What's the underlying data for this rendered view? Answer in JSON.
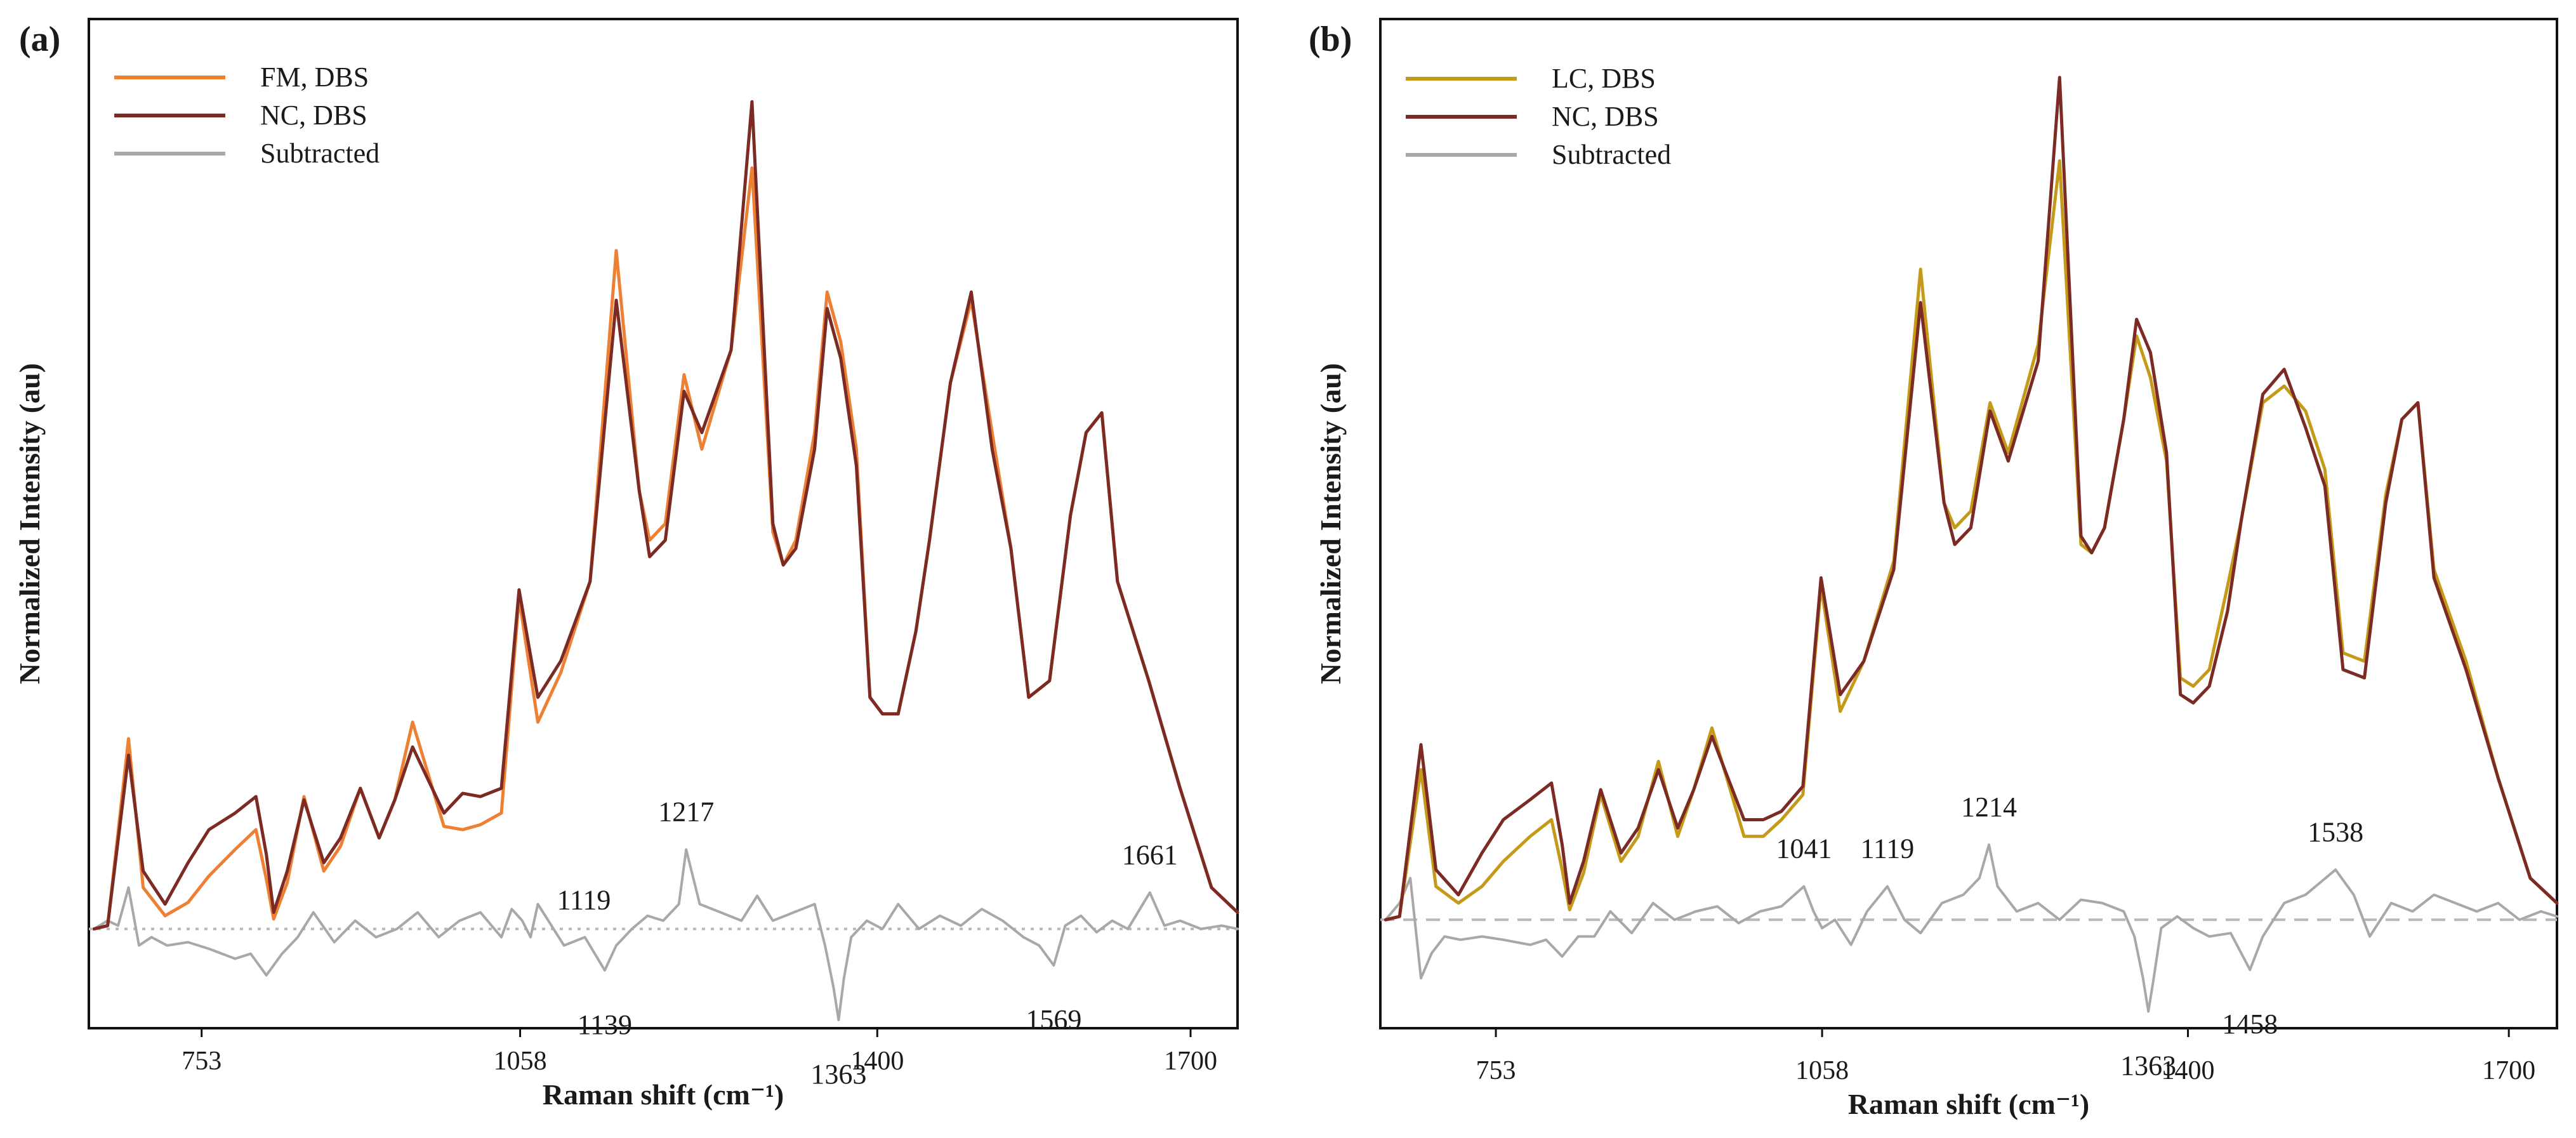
{
  "chart_data": [
    {
      "type": "line",
      "panel_label": "(a)",
      "xlabel": "Raman shift (cm⁻¹)",
      "ylabel": "Normalized Intensity (au)",
      "xlim": [
        645,
        1745
      ],
      "ylim": [
        -0.6,
        5.5
      ],
      "xticks": [
        {
          "label": "753",
          "value": 753
        },
        {
          "label": "1058",
          "value": 1058
        },
        {
          "label": "1400",
          "value": 1400
        },
        {
          "label": "1700",
          "value": 1700
        }
      ],
      "baseline_style": "dotted",
      "legend": {
        "position": "top-left",
        "entries": [
          "FM, DBS",
          "NC, DBS",
          "Subtracted"
        ]
      },
      "series": [
        {
          "name": "FM, DBS",
          "color": "#ee8034",
          "x": [
            650,
            663,
            683,
            697,
            718,
            740,
            760,
            785,
            805,
            815,
            822,
            835,
            851,
            870,
            886,
            905,
            923,
            938,
            955,
            985,
            1003,
            1020,
            1040,
            1057,
            1075,
            1097,
            1125,
            1150,
            1172,
            1182,
            1197,
            1215,
            1232,
            1260,
            1280,
            1300,
            1310,
            1322,
            1340,
            1352,
            1365,
            1380,
            1393,
            1405,
            1420,
            1437,
            1450,
            1470,
            1490,
            1510,
            1528,
            1545,
            1565,
            1585,
            1600,
            1615,
            1630,
            1660,
            1690,
            1720,
            1745
          ],
          "values": [
            0.0,
            0.02,
            1.15,
            0.25,
            0.08,
            0.16,
            0.32,
            0.48,
            0.6,
            0.3,
            0.06,
            0.28,
            0.8,
            0.35,
            0.5,
            0.85,
            0.55,
            0.78,
            1.25,
            0.62,
            0.6,
            0.63,
            0.7,
            2.0,
            1.25,
            1.55,
            2.1,
            4.1,
            2.65,
            2.35,
            2.45,
            3.35,
            2.9,
            3.5,
            4.6,
            2.4,
            2.2,
            2.35,
            3.0,
            3.85,
            3.55,
            2.9,
            1.4,
            1.3,
            1.3,
            1.8,
            2.35,
            3.3,
            3.8,
            3.0,
            2.3,
            1.4,
            1.5,
            2.5,
            3.0,
            3.12,
            2.1,
            1.5,
            0.85,
            0.25,
            0.1
          ]
        },
        {
          "name": "NC, DBS",
          "color": "#7b2a24",
          "x": [
            650,
            663,
            683,
            697,
            718,
            740,
            760,
            785,
            805,
            815,
            822,
            835,
            851,
            870,
            886,
            905,
            923,
            938,
            955,
            985,
            1003,
            1020,
            1040,
            1057,
            1075,
            1097,
            1125,
            1150,
            1172,
            1182,
            1197,
            1215,
            1232,
            1260,
            1280,
            1300,
            1310,
            1322,
            1340,
            1352,
            1365,
            1380,
            1393,
            1405,
            1420,
            1437,
            1450,
            1470,
            1490,
            1510,
            1528,
            1545,
            1565,
            1585,
            1600,
            1615,
            1630,
            1660,
            1690,
            1720,
            1745
          ],
          "values": [
            0.0,
            0.02,
            1.05,
            0.35,
            0.15,
            0.4,
            0.6,
            0.7,
            0.8,
            0.45,
            0.1,
            0.35,
            0.78,
            0.4,
            0.55,
            0.85,
            0.55,
            0.78,
            1.1,
            0.7,
            0.82,
            0.8,
            0.85,
            2.05,
            1.4,
            1.62,
            2.1,
            3.8,
            2.65,
            2.25,
            2.35,
            3.25,
            3.0,
            3.5,
            5.0,
            2.45,
            2.2,
            2.3,
            2.9,
            3.75,
            3.45,
            2.8,
            1.4,
            1.3,
            1.3,
            1.8,
            2.35,
            3.3,
            3.85,
            2.9,
            2.3,
            1.4,
            1.5,
            2.5,
            3.0,
            3.12,
            2.1,
            1.5,
            0.85,
            0.25,
            0.1
          ]
        },
        {
          "name": "Subtracted",
          "color": "#a8a8a8",
          "x": [
            650,
            663,
            673,
            683,
            693,
            705,
            720,
            740,
            760,
            785,
            800,
            815,
            830,
            845,
            860,
            880,
            900,
            920,
            940,
            960,
            980,
            1000,
            1020,
            1040,
            1050,
            1060,
            1068,
            1075,
            1085,
            1100,
            1120,
            1139,
            1150,
            1165,
            1180,
            1195,
            1210,
            1217,
            1230,
            1250,
            1270,
            1285,
            1300,
            1320,
            1340,
            1350,
            1358,
            1363,
            1368,
            1375,
            1390,
            1405,
            1420,
            1440,
            1460,
            1480,
            1500,
            1520,
            1540,
            1555,
            1569,
            1580,
            1595,
            1610,
            1625,
            1640,
            1661,
            1675,
            1690,
            1710,
            1730,
            1745
          ],
          "values": [
            0.0,
            0.05,
            0.02,
            0.25,
            -0.1,
            -0.05,
            -0.1,
            -0.08,
            -0.12,
            -0.18,
            -0.15,
            -0.28,
            -0.15,
            -0.05,
            0.1,
            -0.08,
            0.05,
            -0.05,
            0.0,
            0.1,
            -0.05,
            0.05,
            0.1,
            -0.05,
            0.12,
            0.05,
            -0.05,
            0.15,
            0.05,
            -0.1,
            -0.05,
            -0.25,
            -0.1,
            0.0,
            0.08,
            0.05,
            0.15,
            0.48,
            0.15,
            0.1,
            0.05,
            0.2,
            0.05,
            0.1,
            0.15,
            -0.1,
            -0.35,
            -0.55,
            -0.3,
            -0.05,
            0.05,
            0.0,
            0.15,
            0.0,
            0.08,
            0.02,
            0.12,
            0.05,
            -0.05,
            -0.1,
            -0.22,
            0.02,
            0.08,
            -0.02,
            0.05,
            0.0,
            0.22,
            0.02,
            0.05,
            0.0,
            0.02,
            0.0
          ]
        }
      ],
      "annotations": [
        {
          "text": "1119",
          "x": 1119,
          "position": "above"
        },
        {
          "text": "1139",
          "x": 1139,
          "position": "below"
        },
        {
          "text": "1217",
          "x": 1217,
          "position": "above"
        },
        {
          "text": "1363",
          "x": 1363,
          "position": "below"
        },
        {
          "text": "1569",
          "x": 1569,
          "position": "below"
        },
        {
          "text": "1661",
          "x": 1661,
          "position": "above"
        }
      ]
    },
    {
      "type": "line",
      "panel_label": "(b)",
      "xlabel": "Raman shift (cm⁻¹)",
      "ylabel": "Normalized Intensity (au)",
      "xlim": [
        645,
        1745
      ],
      "ylim": [
        -0.65,
        5.4
      ],
      "xticks": [
        {
          "label": "753",
          "value": 753
        },
        {
          "label": "1058",
          "value": 1058
        },
        {
          "label": "1400",
          "value": 1400
        },
        {
          "label": "1700",
          "value": 1700
        }
      ],
      "baseline_style": "dashed",
      "legend": {
        "position": "top-left",
        "entries": [
          "LC, DBS",
          "NC, DBS",
          "Subtracted"
        ]
      },
      "series": [
        {
          "name": "LC, DBS",
          "color": "#c49a18",
          "x": [
            650,
            663,
            683,
            697,
            718,
            740,
            760,
            785,
            805,
            815,
            822,
            835,
            851,
            870,
            886,
            905,
            923,
            938,
            955,
            985,
            1003,
            1020,
            1040,
            1057,
            1075,
            1097,
            1125,
            1150,
            1172,
            1182,
            1197,
            1215,
            1232,
            1260,
            1280,
            1300,
            1310,
            1322,
            1340,
            1352,
            1365,
            1380,
            1393,
            1405,
            1420,
            1437,
            1450,
            1470,
            1490,
            1510,
            1528,
            1545,
            1565,
            1585,
            1600,
            1615,
            1630,
            1660,
            1690,
            1720,
            1745
          ],
          "values": [
            0.0,
            0.02,
            0.9,
            0.2,
            0.1,
            0.2,
            0.35,
            0.5,
            0.6,
            0.3,
            0.06,
            0.28,
            0.75,
            0.35,
            0.5,
            0.95,
            0.5,
            0.78,
            1.15,
            0.5,
            0.5,
            0.6,
            0.75,
            2.0,
            1.25,
            1.55,
            2.15,
            3.9,
            2.5,
            2.35,
            2.45,
            3.1,
            2.8,
            3.45,
            4.55,
            2.25,
            2.2,
            2.35,
            3.0,
            3.5,
            3.25,
            2.75,
            1.45,
            1.4,
            1.5,
            2.0,
            2.4,
            3.1,
            3.2,
            3.05,
            2.7,
            1.6,
            1.55,
            2.55,
            3.0,
            3.1,
            2.1,
            1.55,
            0.85,
            0.25,
            0.1
          ]
        },
        {
          "name": "NC, DBS",
          "color": "#7b2a24",
          "x": [
            650,
            663,
            683,
            697,
            718,
            740,
            760,
            785,
            805,
            815,
            822,
            835,
            851,
            870,
            886,
            905,
            923,
            938,
            955,
            985,
            1003,
            1020,
            1040,
            1057,
            1075,
            1097,
            1125,
            1150,
            1172,
            1182,
            1197,
            1215,
            1232,
            1260,
            1280,
            1300,
            1310,
            1322,
            1340,
            1352,
            1365,
            1380,
            1393,
            1405,
            1420,
            1437,
            1450,
            1470,
            1490,
            1510,
            1528,
            1545,
            1565,
            1585,
            1600,
            1615,
            1630,
            1660,
            1690,
            1720,
            1745
          ],
          "values": [
            0.0,
            0.02,
            1.05,
            0.3,
            0.15,
            0.4,
            0.6,
            0.72,
            0.82,
            0.45,
            0.1,
            0.35,
            0.78,
            0.4,
            0.55,
            0.9,
            0.55,
            0.78,
            1.1,
            0.6,
            0.6,
            0.65,
            0.8,
            2.05,
            1.35,
            1.55,
            2.1,
            3.7,
            2.5,
            2.25,
            2.35,
            3.05,
            2.75,
            3.35,
            5.05,
            2.3,
            2.2,
            2.35,
            3.0,
            3.6,
            3.4,
            2.8,
            1.35,
            1.3,
            1.4,
            1.85,
            2.4,
            3.15,
            3.3,
            2.95,
            2.6,
            1.5,
            1.45,
            2.5,
            3.0,
            3.1,
            2.05,
            1.5,
            0.85,
            0.25,
            0.1
          ]
        },
        {
          "name": "Subtracted",
          "color": "#a8a8a8",
          "x": [
            650,
            663,
            673,
            683,
            693,
            705,
            720,
            740,
            760,
            785,
            800,
            815,
            830,
            845,
            860,
            880,
            900,
            920,
            940,
            960,
            980,
            1000,
            1020,
            1041,
            1050,
            1058,
            1070,
            1085,
            1100,
            1119,
            1135,
            1150,
            1170,
            1190,
            1205,
            1214,
            1222,
            1240,
            1260,
            1280,
            1300,
            1320,
            1340,
            1350,
            1358,
            1363,
            1368,
            1375,
            1390,
            1405,
            1420,
            1440,
            1458,
            1470,
            1490,
            1510,
            1538,
            1555,
            1570,
            1590,
            1610,
            1630,
            1650,
            1670,
            1690,
            1710,
            1730,
            1745
          ],
          "values": [
            0.0,
            0.1,
            0.25,
            -0.35,
            -0.2,
            -0.1,
            -0.12,
            -0.1,
            -0.12,
            -0.15,
            -0.12,
            -0.22,
            -0.1,
            -0.1,
            0.05,
            -0.08,
            0.1,
            0.0,
            0.05,
            0.08,
            -0.02,
            0.05,
            0.08,
            0.2,
            0.05,
            -0.05,
            0.0,
            -0.15,
            0.05,
            0.2,
            0.0,
            -0.08,
            0.1,
            0.15,
            0.25,
            0.45,
            0.2,
            0.05,
            0.1,
            0.0,
            0.12,
            0.1,
            0.05,
            -0.1,
            -0.35,
            -0.55,
            -0.35,
            -0.05,
            0.02,
            -0.05,
            -0.1,
            -0.08,
            -0.3,
            -0.1,
            0.1,
            0.15,
            0.3,
            0.15,
            -0.1,
            0.1,
            0.05,
            0.15,
            0.1,
            0.05,
            0.1,
            0.0,
            0.05,
            0.02
          ]
        }
      ],
      "annotations": [
        {
          "text": "1041",
          "x": 1041,
          "position": "above"
        },
        {
          "text": "1119",
          "x": 1119,
          "position": "above"
        },
        {
          "text": "1214",
          "x": 1214,
          "position": "above"
        },
        {
          "text": "1363",
          "x": 1363,
          "position": "below"
        },
        {
          "text": "1458",
          "x": 1458,
          "position": "below"
        },
        {
          "text": "1538",
          "x": 1538,
          "position": "above"
        }
      ]
    }
  ]
}
